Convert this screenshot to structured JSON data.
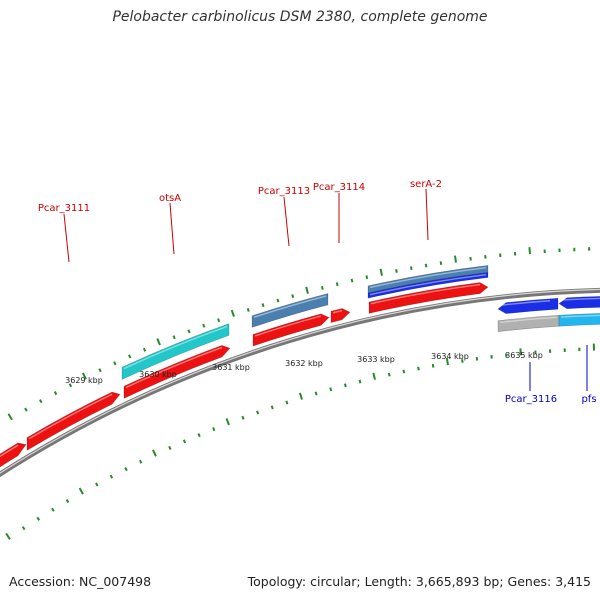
{
  "title": "Pelobacter carbinolicus DSM 2380, complete genome",
  "footer": {
    "accession": "Accession: NC_007498",
    "summary": "Topology: circular; Length: 3,665,893 bp; Genes: 3,415"
  },
  "colors": {
    "cds_forward": "#ee1111",
    "cds_reverse": "#1a2ee6",
    "rna": "#22c7c9",
    "gene_blue": "#4a7fb0",
    "gene_gray": "#b0b0b0",
    "gene_light": "#22b6ee",
    "tick": "#2a8a2a",
    "backbone": "#777777",
    "label_red": "#cc0000",
    "label_blue": "#0000cc"
  },
  "scale_labels": [
    "3629 kbp",
    "3630 kbp",
    "3631 kbp",
    "3632 kbp",
    "3633 kbp",
    "3634 kbp",
    "3635 kbp"
  ],
  "gene_labels": [
    {
      "text": "Pcar_3111",
      "strand": "forward"
    },
    {
      "text": "otsA",
      "strand": "forward"
    },
    {
      "text": "Pcar_3113",
      "strand": "forward"
    },
    {
      "text": "Pcar_3114",
      "strand": "forward"
    },
    {
      "text": "serA-2",
      "strand": "forward"
    },
    {
      "text": "Pcar_3116",
      "strand": "reverse"
    },
    {
      "text": "pfs",
      "strand": "reverse"
    }
  ]
}
